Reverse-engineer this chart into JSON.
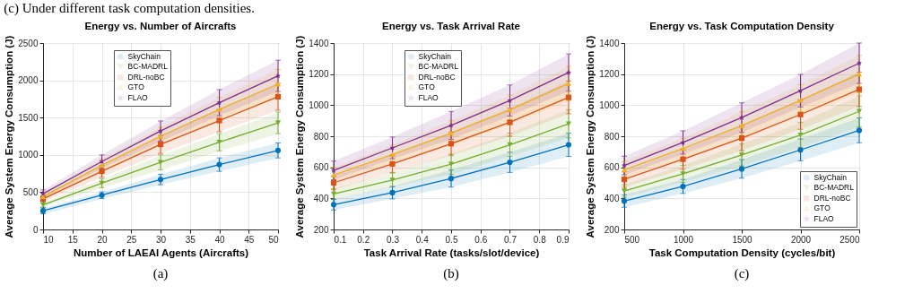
{
  "chart_data": [
    {
      "type": "line",
      "title": "Energy vs. Number of Aircrafts",
      "xlabel": "Number of LAEAI Agents (Aircrafts)",
      "ylabel": "Average System Energy Consumption (J)",
      "annotations": [
        "(c) Under different task computation densities.",
        "(a)"
      ],
      "x": [
        10,
        20,
        30,
        40,
        50
      ],
      "xlim": [
        10,
        50
      ],
      "xticks": [
        10,
        15,
        20,
        25,
        30,
        35,
        40,
        45,
        50
      ],
      "ylim": [
        0,
        2500
      ],
      "yticks": [
        0,
        500,
        1000,
        1500,
        2000,
        2500
      ],
      "grid": true,
      "legend": "top left",
      "series": [
        {
          "name": "SkyChain",
          "color": "#0072bd",
          "marker": "circle",
          "values": [
            250,
            460,
            670,
            870,
            1060
          ],
          "errors": [
            40,
            45,
            70,
            90,
            100
          ],
          "lower": [
            205,
            410,
            600,
            780,
            960
          ],
          "upper": [
            285,
            500,
            740,
            960,
            1160
          ]
        },
        {
          "name": "BC-MADRL",
          "color": "#77ac30",
          "marker": "triangle-down",
          "values": [
            330,
            620,
            900,
            1170,
            1430
          ],
          "errors": [
            30,
            60,
            100,
            115,
            145
          ],
          "lower": [
            300,
            555,
            795,
            1050,
            1280
          ],
          "upper": [
            360,
            675,
            995,
            1280,
            1570
          ]
        },
        {
          "name": "DRL-noBC",
          "color": "#d95319",
          "marker": "square",
          "values": [
            410,
            780,
            1140,
            1460,
            1780
          ],
          "errors": [
            40,
            80,
            120,
            150,
            180
          ],
          "lower": [
            370,
            700,
            1015,
            1310,
            1595
          ],
          "upper": [
            450,
            860,
            1255,
            1610,
            1955
          ]
        },
        {
          "name": "GTO",
          "color": "#edb120",
          "marker": "triangle-up",
          "values": [
            440,
            860,
            1250,
            1610,
            1950
          ],
          "errors": [
            40,
            80,
            120,
            160,
            195
          ],
          "lower": [
            400,
            780,
            1130,
            1450,
            1755
          ],
          "upper": [
            480,
            940,
            1370,
            1770,
            2145
          ]
        },
        {
          "name": "FLAO",
          "color": "#7e2f8e",
          "marker": "star",
          "values": [
            480,
            910,
            1320,
            1700,
            2060
          ],
          "errors": [
            50,
            90,
            135,
            175,
            210
          ],
          "lower": [
            425,
            820,
            1180,
            1525,
            1850
          ],
          "upper": [
            525,
            1000,
            1450,
            1875,
            2270
          ]
        }
      ]
    },
    {
      "type": "line",
      "title": "Energy vs. Task Arrival Rate",
      "xlabel": "Task Arrival Rate (tasks/slot/device)",
      "ylabel": "Average System Energy Consumption (J)",
      "annotations": [
        "(b)"
      ],
      "x": [
        0.1,
        0.3,
        0.5,
        0.7,
        0.9
      ],
      "xlim": [
        0.1,
        0.9
      ],
      "xticks": [
        0.1,
        0.2,
        0.3,
        0.4,
        0.5,
        0.6,
        0.7,
        0.8,
        0.9
      ],
      "ylim": [
        200,
        1400
      ],
      "yticks": [
        200,
        400,
        600,
        800,
        1000,
        1200,
        1400
      ],
      "grid": true,
      "legend": "top left",
      "series": [
        {
          "name": "SkyChain",
          "color": "#0072bd",
          "marker": "circle",
          "values": [
            360,
            437,
            528,
            632,
            745
          ],
          "errors": [
            35,
            40,
            55,
            65,
            75
          ],
          "lower": [
            325,
            397,
            473,
            567,
            670
          ],
          "upper": [
            395,
            477,
            583,
            697,
            820
          ]
        },
        {
          "name": "BC-MADRL",
          "color": "#77ac30",
          "marker": "triangle-down",
          "values": [
            428,
            518,
            620,
            745,
            880
          ],
          "errors": [
            35,
            45,
            65,
            75,
            90
          ],
          "lower": [
            393,
            473,
            555,
            670,
            790
          ],
          "upper": [
            463,
            563,
            685,
            820,
            970
          ]
        },
        {
          "name": "DRL-noBC",
          "color": "#d95319",
          "marker": "square",
          "values": [
            500,
            622,
            752,
            890,
            1050
          ],
          "errors": [
            45,
            55,
            75,
            90,
            105
          ],
          "lower": [
            455,
            567,
            677,
            800,
            945
          ],
          "upper": [
            545,
            677,
            827,
            980,
            1155
          ]
        },
        {
          "name": "GTO",
          "color": "#edb120",
          "marker": "triangle-up",
          "values": [
            550,
            683,
            820,
            970,
            1140
          ],
          "errors": [
            50,
            60,
            80,
            95,
            110
          ],
          "lower": [
            500,
            623,
            740,
            875,
            1030
          ],
          "upper": [
            600,
            743,
            900,
            1065,
            1250
          ]
        },
        {
          "name": "FLAO",
          "color": "#7e2f8e",
          "marker": "star",
          "values": [
            580,
            725,
            870,
            1030,
            1210
          ],
          "errors": [
            60,
            70,
            90,
            100,
            120
          ],
          "lower": [
            520,
            655,
            780,
            930,
            1090
          ],
          "upper": [
            640,
            795,
            960,
            1130,
            1330
          ]
        }
      ]
    },
    {
      "type": "line",
      "title": "Energy vs. Task Computation Density",
      "xlabel": "Task Computation Density (cycles/bit)",
      "ylabel": "Average System Energy Consumption (J)",
      "annotations": [
        "(c)"
      ],
      "x": [
        500,
        1000,
        1500,
        2000,
        2500
      ],
      "xlim": [
        500,
        2500
      ],
      "xticks": [
        500,
        1000,
        1500,
        2000,
        2500
      ],
      "ylim": [
        200,
        1400
      ],
      "yticks": [
        200,
        400,
        600,
        800,
        1000,
        1200,
        1400
      ],
      "grid": true,
      "legend": "bottom right",
      "series": [
        {
          "name": "SkyChain",
          "color": "#0072bd",
          "marker": "circle",
          "values": [
            383,
            477,
            590,
            712,
            838
          ],
          "errors": [
            40,
            45,
            60,
            70,
            80
          ],
          "lower": [
            343,
            432,
            530,
            642,
            758
          ],
          "upper": [
            423,
            522,
            650,
            782,
            918
          ]
        },
        {
          "name": "BC-MADRL",
          "color": "#77ac30",
          "marker": "triangle-down",
          "values": [
            448,
            558,
            680,
            808,
            960
          ],
          "errors": [
            40,
            55,
            70,
            80,
            100
          ],
          "lower": [
            408,
            503,
            610,
            728,
            860
          ],
          "upper": [
            488,
            613,
            750,
            888,
            1060
          ]
        },
        {
          "name": "DRL-noBC",
          "color": "#d95319",
          "marker": "square",
          "values": [
            522,
            652,
            788,
            940,
            1102
          ],
          "errors": [
            50,
            65,
            80,
            95,
            110
          ],
          "lower": [
            472,
            587,
            708,
            845,
            992
          ],
          "upper": [
            572,
            717,
            868,
            1035,
            1212
          ]
        },
        {
          "name": "GTO",
          "color": "#edb120",
          "marker": "triangle-up",
          "values": [
            583,
            722,
            868,
            1032,
            1200
          ],
          "errors": [
            55,
            65,
            90,
            100,
            120
          ],
          "lower": [
            528,
            657,
            778,
            932,
            1080
          ],
          "upper": [
            638,
            787,
            958,
            1132,
            1320
          ]
        },
        {
          "name": "FLAO",
          "color": "#7e2f8e",
          "marker": "star",
          "values": [
            612,
            760,
            920,
            1093,
            1270
          ],
          "errors": [
            60,
            75,
            95,
            105,
            130
          ],
          "lower": [
            552,
            685,
            825,
            988,
            1140
          ],
          "upper": [
            672,
            835,
            1015,
            1198,
            1400
          ]
        }
      ]
    }
  ]
}
